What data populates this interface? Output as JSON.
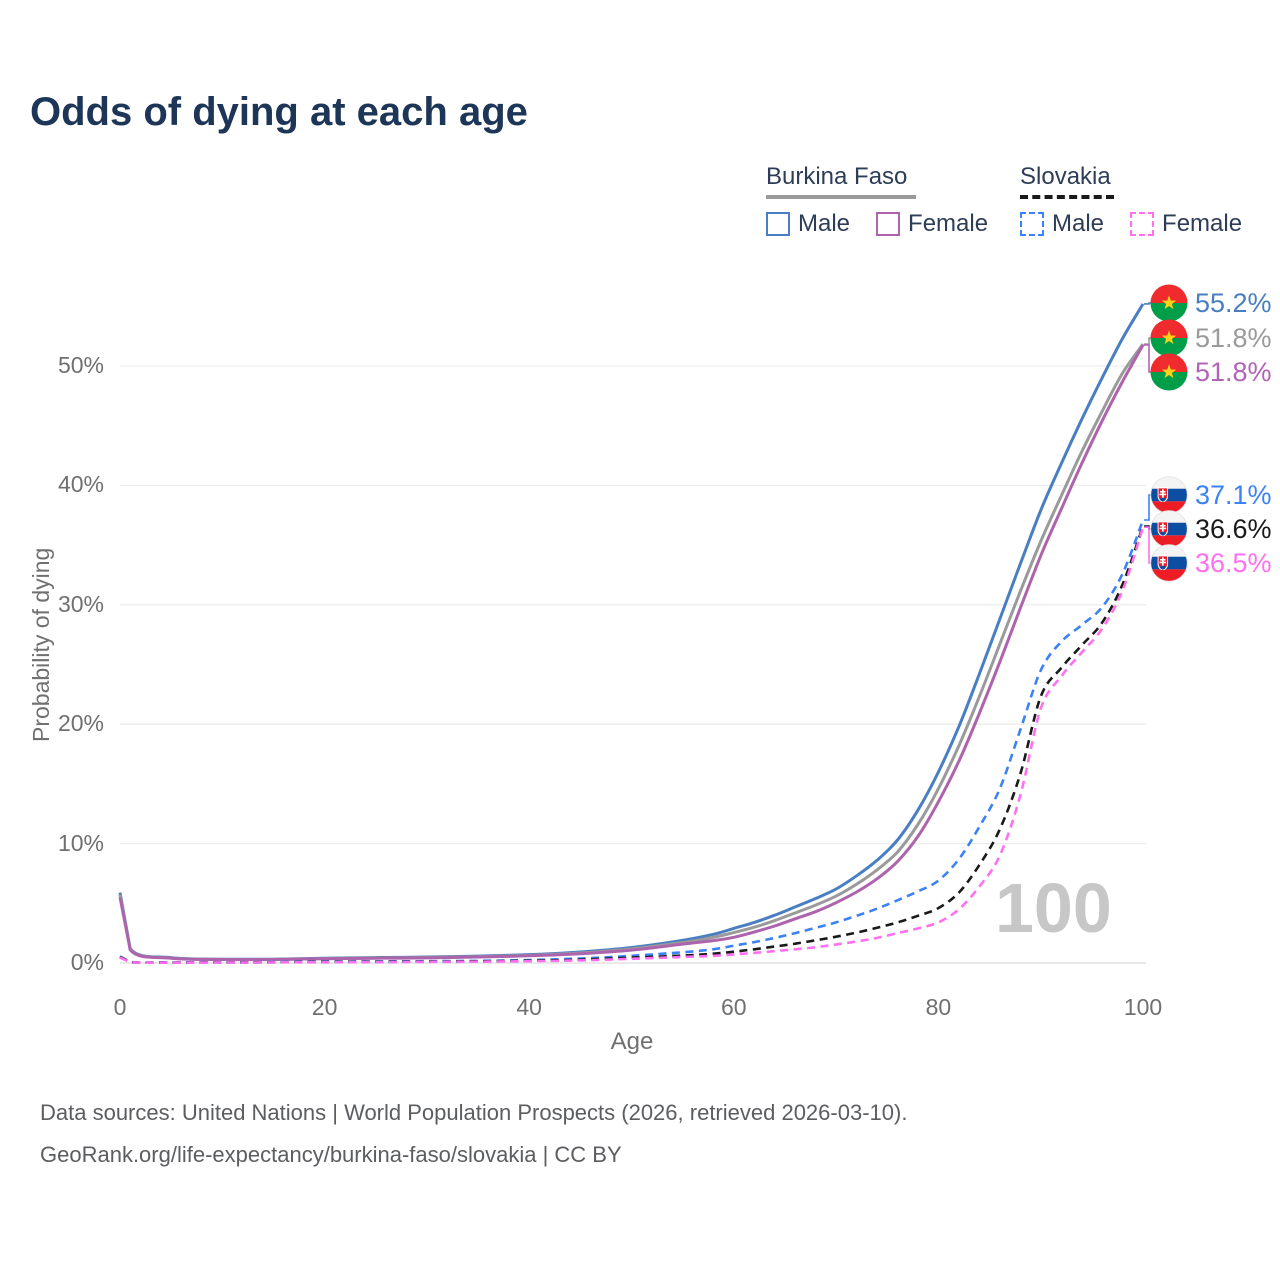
{
  "title": "Odds of dying at each age",
  "legend": {
    "groups": [
      {
        "name": "Burkina Faso",
        "line_style": "solid",
        "line_color": "#9a9a9a",
        "items": [
          {
            "label": "Male",
            "color": "#4a7ec2",
            "dashed": false
          },
          {
            "label": "Female",
            "color": "#ad64ad",
            "dashed": false
          }
        ]
      },
      {
        "name": "Slovakia",
        "line_style": "dashed",
        "line_color": "#1a1a1a",
        "items": [
          {
            "label": "Male",
            "color": "#3b82f6",
            "dashed": true
          },
          {
            "label": "Female",
            "color": "#ff70f0",
            "dashed": true
          }
        ]
      }
    ]
  },
  "axes": {
    "x": {
      "title": "Age",
      "tick_values": [
        0,
        20,
        40,
        60,
        80,
        100
      ],
      "tick_labels": [
        "0",
        "20",
        "40",
        "60",
        "80",
        "100"
      ]
    },
    "y": {
      "title": "Probability of dying",
      "tick_values": [
        0,
        10,
        20,
        30,
        40,
        50
      ],
      "tick_labels": [
        "0%",
        "10%",
        "20%",
        "30%",
        "40%",
        "50%"
      ]
    }
  },
  "watermark": "100",
  "end_labels": [
    {
      "series": "Burkina Faso Male",
      "value": "55.2%",
      "color": "#4a7ec2",
      "flag": "burkina-faso"
    },
    {
      "series": "Burkina Faso Both sexes",
      "value": "51.8%",
      "color": "#9a9a9a",
      "flag": "burkina-faso"
    },
    {
      "series": "Burkina Faso Female",
      "value": "51.8%",
      "color": "#b263b8",
      "flag": "burkina-faso"
    },
    {
      "series": "Slovakia Male",
      "value": "37.1%",
      "color": "#3b82f6",
      "flag": "slovakia"
    },
    {
      "series": "Slovakia Both sexes",
      "value": "36.6%",
      "color": "#1a1a1a",
      "flag": "slovakia"
    },
    {
      "series": "Slovakia Female",
      "value": "36.5%",
      "color": "#ff70f0",
      "flag": "slovakia"
    }
  ],
  "footer": {
    "line1": "Data sources: United Nations | World Population Prospects (2026, retrieved 2026-03-10).",
    "line2": "GeoRank.org/life-expectancy/burkina-faso/slovakia | CC BY"
  },
  "chart_data": {
    "type": "line",
    "title": "Odds of dying at each age",
    "xlabel": "Age",
    "ylabel": "Probability of dying",
    "unit": "%",
    "x_range": [
      0,
      100
    ],
    "ylim_percent": [
      0,
      57
    ],
    "grid": "horizontal",
    "legend_position": "top-right",
    "ages": [
      0,
      1,
      5,
      10,
      15,
      20,
      25,
      30,
      35,
      40,
      45,
      50,
      55,
      58,
      60,
      62,
      64,
      66,
      68,
      70,
      72,
      74,
      76,
      78,
      80,
      82,
      84,
      86,
      88,
      90,
      92,
      94,
      96,
      98,
      100
    ],
    "series": [
      {
        "name": "Burkina Faso Male",
        "style": "solid",
        "color": "#4a7ec2",
        "end_label": "55.2%",
        "values": [
          5.9,
          1.2,
          0.45,
          0.32,
          0.32,
          0.4,
          0.45,
          0.5,
          0.58,
          0.7,
          0.92,
          1.3,
          1.9,
          2.4,
          2.9,
          3.4,
          4.0,
          4.7,
          5.4,
          6.2,
          7.3,
          8.6,
          10.3,
          12.8,
          16.0,
          19.8,
          24.2,
          28.8,
          33.4,
          37.9,
          41.8,
          45.5,
          49.0,
          52.3,
          55.2
        ]
      },
      {
        "name": "Burkina Faso Both sexes",
        "style": "solid",
        "color": "#9a9a9a",
        "end_label": "51.8%",
        "values": [
          5.7,
          1.15,
          0.42,
          0.3,
          0.3,
          0.37,
          0.42,
          0.46,
          0.54,
          0.64,
          0.84,
          1.18,
          1.72,
          2.15,
          2.55,
          3.0,
          3.55,
          4.2,
          4.85,
          5.6,
          6.6,
          7.8,
          9.3,
          11.6,
          14.6,
          18.2,
          22.3,
          26.7,
          31.1,
          35.3,
          39.1,
          42.8,
          46.2,
          49.4,
          51.84
        ]
      },
      {
        "name": "Burkina Faso Female",
        "style": "solid",
        "color": "#ad64ad",
        "end_label": "51.8%",
        "values": [
          5.5,
          1.1,
          0.4,
          0.29,
          0.29,
          0.35,
          0.4,
          0.43,
          0.5,
          0.6,
          0.78,
          1.08,
          1.58,
          1.88,
          2.15,
          2.6,
          3.1,
          3.7,
          4.3,
          5.05,
          5.95,
          7.05,
          8.5,
          10.6,
          13.5,
          16.9,
          20.9,
          25.2,
          29.7,
          34.1,
          38.0,
          41.8,
          45.4,
          48.7,
          51.76
        ]
      },
      {
        "name": "Slovakia Male",
        "style": "dashed",
        "color": "#3b82f6",
        "end_label": "37.1%",
        "values": [
          0.55,
          0.08,
          0.05,
          0.05,
          0.08,
          0.12,
          0.13,
          0.15,
          0.18,
          0.25,
          0.38,
          0.6,
          0.9,
          1.15,
          1.45,
          1.75,
          2.1,
          2.5,
          2.95,
          3.4,
          3.95,
          4.55,
          5.25,
          6.0,
          6.9,
          8.7,
          11.4,
          14.6,
          19.5,
          24.5,
          26.9,
          28.3,
          29.8,
          32.6,
          37.1
        ]
      },
      {
        "name": "Slovakia Both sexes",
        "style": "dashed",
        "color": "#1a1a1a",
        "end_label": "36.6%",
        "values": [
          0.5,
          0.07,
          0.04,
          0.04,
          0.06,
          0.09,
          0.1,
          0.12,
          0.14,
          0.19,
          0.28,
          0.45,
          0.62,
          0.78,
          0.95,
          1.15,
          1.38,
          1.62,
          1.9,
          2.2,
          2.55,
          2.95,
          3.4,
          3.95,
          4.6,
          5.9,
          8.2,
          11.2,
          15.8,
          22.3,
          24.7,
          26.6,
          28.5,
          31.7,
          36.6
        ]
      },
      {
        "name": "Slovakia Female",
        "style": "dashed",
        "color": "#ff70f0",
        "end_label": "36.5%",
        "values": [
          0.45,
          0.06,
          0.03,
          0.03,
          0.05,
          0.06,
          0.07,
          0.09,
          0.11,
          0.15,
          0.22,
          0.35,
          0.5,
          0.6,
          0.72,
          0.85,
          1.0,
          1.15,
          1.32,
          1.55,
          1.8,
          2.1,
          2.5,
          2.9,
          3.4,
          4.5,
          6.4,
          9.0,
          14.0,
          21.3,
          24.0,
          26.0,
          28.0,
          31.2,
          36.5
        ]
      }
    ]
  }
}
